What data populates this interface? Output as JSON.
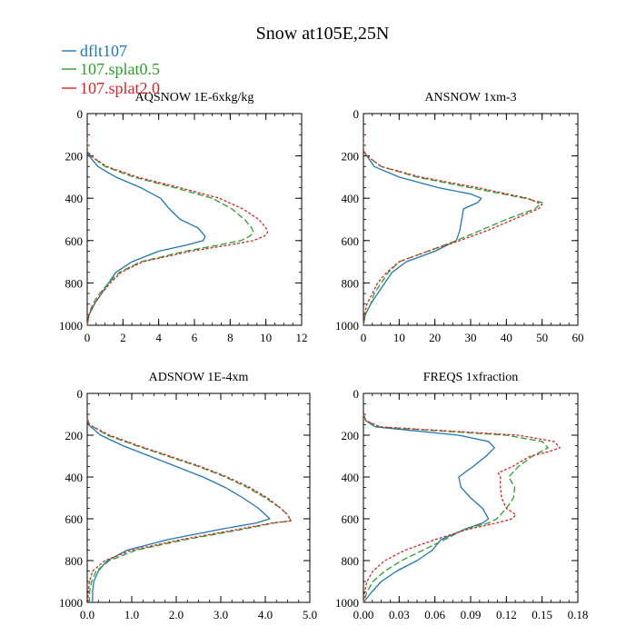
{
  "figure": {
    "title": "Snow at105E,25N"
  },
  "legend": [
    {
      "name": "dflt107",
      "color": "#1f77b4",
      "dash": "solid"
    },
    {
      "name": "107.splat0.5",
      "color": "#2ca02c",
      "dash": "dashed"
    },
    {
      "name": "107.splat2.0",
      "color": "#d62728",
      "dash": "dotted"
    }
  ],
  "chart_data": [
    {
      "type": "line",
      "title": "AQSNOW  1E-6xkg/kg",
      "xlim": [
        0,
        12
      ],
      "ylim": [
        1000,
        0
      ],
      "xticks": [
        0,
        2,
        4,
        6,
        8,
        10,
        12
      ],
      "xtick_labels": [
        "0",
        "2",
        "4",
        "6",
        "8",
        "10",
        "12"
      ],
      "yticks": [
        0,
        200,
        400,
        600,
        800,
        1000
      ],
      "ytick_labels": [
        "0",
        "200",
        "400",
        "600",
        "800",
        "1000"
      ],
      "series": [
        {
          "name": "dflt107",
          "y": [
            100,
            175,
            200,
            250,
            300,
            350,
            400,
            450,
            500,
            540,
            580,
            600,
            620,
            650,
            700,
            750,
            800,
            850,
            900,
            950,
            1000
          ],
          "x": [
            0,
            0,
            0.1,
            0.6,
            1.6,
            3.0,
            4.1,
            4.6,
            5.2,
            6.2,
            6.6,
            6.5,
            5.6,
            4.0,
            2.5,
            1.6,
            1.2,
            0.8,
            0.4,
            0.1,
            0
          ]
        },
        {
          "name": "107.splat0.5",
          "y": [
            100,
            175,
            200,
            250,
            300,
            350,
            400,
            450,
            500,
            540,
            560,
            580,
            600,
            620,
            650,
            700,
            750,
            800,
            850,
            900,
            950,
            1000
          ],
          "x": [
            0,
            0,
            0.2,
            1.0,
            2.6,
            4.9,
            7.0,
            8.1,
            8.8,
            9.2,
            9.3,
            9.1,
            8.6,
            7.4,
            5.5,
            3.0,
            1.8,
            1.2,
            0.7,
            0.3,
            0.1,
            0
          ]
        },
        {
          "name": "107.splat2.0",
          "y": [
            100,
            175,
            200,
            250,
            300,
            350,
            400,
            450,
            500,
            540,
            560,
            580,
            600,
            620,
            650,
            700,
            750,
            800,
            850,
            900,
            950,
            1000
          ],
          "x": [
            0,
            0,
            0.2,
            1.1,
            2.8,
            5.2,
            7.4,
            8.7,
            9.6,
            10.0,
            10.1,
            9.9,
            9.3,
            8.0,
            5.8,
            3.1,
            1.9,
            1.3,
            0.8,
            0.4,
            0.1,
            0
          ]
        }
      ]
    },
    {
      "type": "line",
      "title": "ANSNOW  1xm-3",
      "xlim": [
        0,
        60
      ],
      "ylim": [
        1000,
        0
      ],
      "xticks": [
        0,
        10,
        20,
        30,
        40,
        50,
        60
      ],
      "xtick_labels": [
        "0",
        "10",
        "20",
        "30",
        "40",
        "50",
        "60"
      ],
      "yticks": [
        0,
        200,
        400,
        600,
        800,
        1000
      ],
      "ytick_labels": [
        "0",
        "200",
        "400",
        "600",
        "800",
        "1000"
      ],
      "series": [
        {
          "name": "dflt107",
          "y": [
            100,
            175,
            200,
            250,
            300,
            350,
            380,
            400,
            420,
            450,
            500,
            550,
            600,
            650,
            700,
            750,
            800,
            850,
            900,
            950,
            1000
          ],
          "x": [
            0,
            0,
            1,
            3,
            10,
            21,
            30,
            33,
            32,
            28,
            27.5,
            27,
            26,
            20,
            12,
            8,
            6,
            4,
            2,
            0.5,
            0
          ]
        },
        {
          "name": "107.splat0.5",
          "y": [
            100,
            175,
            200,
            250,
            300,
            350,
            400,
            420,
            450,
            500,
            550,
            600,
            650,
            700,
            750,
            800,
            850,
            900,
            950,
            1000
          ],
          "x": [
            0,
            0,
            1,
            5,
            15,
            30,
            45,
            50,
            48,
            40,
            33,
            26,
            18,
            10,
            7,
            5,
            3,
            2,
            0.5,
            0
          ]
        },
        {
          "name": "107.splat2.0",
          "y": [
            100,
            175,
            200,
            250,
            300,
            350,
            400,
            430,
            450,
            500,
            550,
            600,
            650,
            700,
            750,
            800,
            850,
            900,
            950,
            1000
          ],
          "x": [
            0,
            0,
            1,
            5,
            16,
            32,
            46,
            50,
            49,
            42,
            35,
            27,
            18,
            10,
            6.5,
            4,
            2.5,
            1,
            0.3,
            0
          ]
        }
      ]
    },
    {
      "type": "line",
      "title": "ADSNOW  1E-4xm",
      "xlim": [
        0,
        5
      ],
      "ylim": [
        1000,
        0
      ],
      "xticks": [
        0,
        1,
        2,
        3,
        4,
        5
      ],
      "xtick_labels": [
        "0.0",
        "1.0",
        "2.0",
        "3.0",
        "4.0",
        "5.0"
      ],
      "yticks": [
        0,
        200,
        400,
        600,
        800,
        1000
      ],
      "ytick_labels": [
        "0",
        "200",
        "400",
        "600",
        "800",
        "1000"
      ],
      "series": [
        {
          "name": "dflt107",
          "y": [
            120,
            150,
            200,
            250,
            300,
            350,
            400,
            450,
            500,
            550,
            580,
            600,
            620,
            650,
            700,
            750,
            800,
            850,
            900,
            950,
            1000
          ],
          "x": [
            0,
            0.03,
            0.3,
            0.8,
            1.4,
            2.0,
            2.6,
            3.1,
            3.5,
            3.85,
            4.0,
            4.1,
            3.8,
            3.0,
            1.8,
            0.9,
            0.45,
            0.25,
            0.15,
            0.12,
            0.12
          ]
        },
        {
          "name": "107.splat0.5",
          "y": [
            120,
            150,
            200,
            250,
            300,
            350,
            400,
            450,
            500,
            550,
            580,
            600,
            610,
            620,
            650,
            700,
            750,
            800,
            850,
            900,
            950,
            1000
          ],
          "x": [
            0,
            0.05,
            0.45,
            1.1,
            1.8,
            2.5,
            3.1,
            3.6,
            4.0,
            4.35,
            4.5,
            4.55,
            4.58,
            4.2,
            3.5,
            2.2,
            1.1,
            0.5,
            0.2,
            0.1,
            0.05,
            0.05
          ]
        },
        {
          "name": "107.splat2.0",
          "y": [
            120,
            150,
            200,
            250,
            300,
            350,
            400,
            450,
            500,
            550,
            580,
            600,
            610,
            620,
            650,
            700,
            750,
            800,
            850,
            900,
            950,
            1000
          ],
          "x": [
            0,
            0.05,
            0.5,
            1.15,
            1.85,
            2.55,
            3.15,
            3.65,
            4.05,
            4.35,
            4.5,
            4.55,
            4.56,
            4.15,
            3.4,
            2.1,
            1.0,
            0.4,
            0.12,
            0.05,
            0.02,
            0.02
          ]
        }
      ]
    },
    {
      "type": "line",
      "title": "FREQS  1xfraction",
      "xlim": [
        0,
        0.18
      ],
      "ylim": [
        1000,
        0
      ],
      "xticks": [
        0,
        0.03,
        0.06,
        0.09,
        0.12,
        0.15,
        0.18
      ],
      "xtick_labels": [
        "0.00",
        "0.03",
        "0.06",
        "0.09",
        "0.12",
        "0.15",
        "0.18"
      ],
      "yticks": [
        0,
        200,
        400,
        600,
        800,
        1000
      ],
      "ytick_labels": [
        "0",
        "200",
        "400",
        "600",
        "800",
        "1000"
      ],
      "series": [
        {
          "name": "dflt107",
          "y": [
            100,
            130,
            160,
            200,
            230,
            260,
            300,
            350,
            400,
            450,
            500,
            550,
            600,
            620,
            650,
            700,
            750,
            800,
            850,
            900,
            950,
            1000
          ],
          "x": [
            0,
            0.002,
            0.01,
            0.08,
            0.105,
            0.11,
            0.103,
            0.092,
            0.08,
            0.082,
            0.09,
            0.1,
            0.105,
            0.1,
            0.085,
            0.065,
            0.058,
            0.045,
            0.028,
            0.015,
            0.007,
            0
          ]
        },
        {
          "name": "107.splat0.5",
          "y": [
            100,
            130,
            160,
            200,
            230,
            260,
            300,
            350,
            400,
            450,
            500,
            550,
            600,
            620,
            650,
            700,
            750,
            800,
            850,
            900,
            950,
            1000
          ],
          "x": [
            0,
            0.002,
            0.012,
            0.12,
            0.15,
            0.155,
            0.142,
            0.13,
            0.122,
            0.127,
            0.126,
            0.12,
            0.112,
            0.105,
            0.085,
            0.068,
            0.05,
            0.032,
            0.018,
            0.008,
            0.003,
            0
          ]
        },
        {
          "name": "107.splat2.0",
          "y": [
            100,
            130,
            160,
            200,
            230,
            260,
            280,
            300,
            350,
            380,
            400,
            450,
            500,
            550,
            580,
            600,
            620,
            650,
            700,
            750,
            800,
            850,
            900,
            950,
            1000
          ],
          "x": [
            0,
            0.002,
            0.014,
            0.13,
            0.16,
            0.165,
            0.155,
            0.14,
            0.125,
            0.113,
            0.115,
            0.115,
            0.116,
            0.12,
            0.128,
            0.125,
            0.112,
            0.088,
            0.06,
            0.035,
            0.018,
            0.008,
            0.003,
            0.001,
            0
          ]
        }
      ]
    }
  ]
}
